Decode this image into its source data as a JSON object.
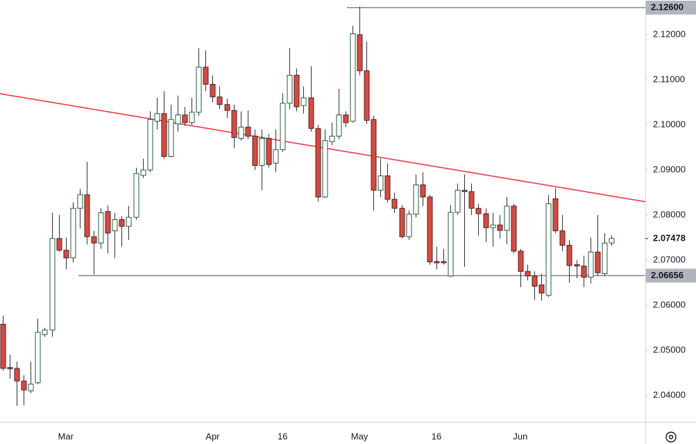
{
  "chart_data": {
    "type": "candlestick",
    "categories": [
      null,
      null,
      null,
      null,
      null,
      null,
      null,
      null,
      null,
      "Mar",
      null,
      null,
      null,
      null,
      null,
      null,
      null,
      null,
      null,
      null,
      null,
      null,
      null,
      null,
      null,
      null,
      null,
      null,
      null,
      null,
      "Apr",
      null,
      null,
      null,
      null,
      null,
      null,
      null,
      null,
      null,
      "16",
      null,
      null,
      null,
      null,
      null,
      null,
      null,
      null,
      null,
      null,
      "May",
      null,
      null,
      null,
      null,
      null,
      null,
      null,
      null,
      null,
      null,
      "16",
      null,
      null,
      null,
      null,
      null,
      null,
      null,
      null,
      null,
      null,
      null,
      "Jun",
      null,
      null,
      null,
      null,
      null,
      null,
      null,
      null,
      null,
      null,
      null,
      null,
      null
    ],
    "open": [
      2.0558,
      2.0462,
      2.046,
      2.0432,
      2.041,
      2.0428,
      2.0535,
      2.0545,
      2.0748,
      2.0722,
      2.0705,
      2.0815,
      2.0845,
      2.0752,
      2.0738,
      2.0808,
      2.0765,
      2.079,
      2.0775,
      2.0795,
      2.0888,
      2.09,
      2.1008,
      2.1025,
      2.093,
      2.1002,
      2.1022,
      2.1005,
      2.1028,
      2.1128,
      2.109,
      2.1062,
      2.1045,
      2.1032,
      2.097,
      2.0995,
      2.0975,
      2.091,
      2.097,
      2.0915,
      2.0945,
      2.1048,
      2.111,
      2.1043,
      2.106,
      2.0992,
      2.084,
      2.0963,
      2.0975,
      2.1022,
      2.1008,
      2.12,
      2.112,
      2.1012,
      2.0855,
      2.0887,
      2.0835,
      2.0815,
      2.0752,
      2.0802,
      2.0867,
      2.084,
      2.0697,
      2.0697,
      2.0665,
      2.0806,
      2.0855,
      2.0852,
      2.0815,
      2.0803,
      2.0772,
      2.0778,
      2.0766,
      2.082,
      2.072,
      2.0675,
      2.0665,
      2.0645,
      2.0622,
      2.0836,
      2.0765,
      2.0733,
      2.069,
      2.0687,
      2.0662,
      2.0718,
      2.067,
      2.0738
    ],
    "high": [
      2.0577,
      2.049,
      2.0475,
      2.0445,
      2.0475,
      2.057,
      2.055,
      2.0805,
      2.08,
      2.075,
      2.0828,
      2.0858,
      2.0918,
      2.0765,
      2.0815,
      2.0822,
      2.0805,
      2.0798,
      2.082,
      2.0905,
      2.0925,
      2.103,
      2.106,
      2.1075,
      2.1045,
      2.1065,
      2.104,
      2.106,
      2.117,
      2.1165,
      2.111,
      2.1085,
      2.1058,
      2.1045,
      2.103,
      2.1032,
      2.099,
      2.099,
      2.098,
      2.099,
      2.107,
      2.117,
      2.1125,
      2.1085,
      2.113,
      2.1,
      2.099,
      2.1005,
      2.108,
      2.103,
      2.122,
      2.1262,
      2.1185,
      2.102,
      2.0925,
      2.0915,
      2.085,
      2.0822,
      2.081,
      2.089,
      2.0895,
      2.0845,
      2.073,
      2.0725,
      2.0822,
      2.087,
      2.089,
      2.087,
      2.0825,
      2.0815,
      2.0805,
      2.08,
      2.084,
      2.0825,
      2.0725,
      2.069,
      2.0675,
      2.067,
      2.0845,
      2.086,
      2.08,
      2.0745,
      2.07,
      2.071,
      2.075,
      2.08,
      2.076,
      2.0755
    ],
    "low": [
      2.0455,
      2.0437,
      2.0377,
      2.0378,
      2.0405,
      2.0425,
      2.053,
      2.053,
      2.0718,
      2.068,
      2.0695,
      2.077,
      2.0735,
      2.0668,
      2.0725,
      2.0715,
      2.0705,
      2.073,
      2.0745,
      2.079,
      2.0882,
      2.0895,
      2.099,
      2.0925,
      2.0928,
      2.0985,
      2.0998,
      2.1,
      2.102,
      2.1075,
      2.105,
      2.1035,
      2.1015,
      2.0948,
      2.0965,
      2.0968,
      2.09,
      2.0855,
      2.0905,
      2.0895,
      2.094,
      2.1035,
      2.103,
      2.1025,
      2.0985,
      2.083,
      2.0838,
      2.0955,
      2.0968,
      2.0995,
      2.1005,
      2.111,
      2.1002,
      2.081,
      2.084,
      2.0828,
      2.0805,
      2.0748,
      2.0745,
      2.0795,
      2.082,
      2.069,
      2.068,
      2.069,
      2.0662,
      2.08,
      2.0685,
      2.08,
      2.0755,
      2.074,
      2.073,
      2.0748,
      2.0735,
      2.0715,
      2.064,
      2.0655,
      2.0612,
      2.061,
      2.0618,
      2.076,
      2.072,
      2.065,
      2.066,
      2.064,
      2.0648,
      2.0665,
      2.0665,
      2.0732
    ],
    "close": [
      2.046,
      2.0459,
      2.0432,
      2.0412,
      2.0425,
      2.054,
      2.0545,
      2.0748,
      2.0722,
      2.0705,
      2.0815,
      2.0845,
      2.0752,
      2.0738,
      2.0805,
      2.076,
      2.079,
      2.0775,
      2.0795,
      2.0892,
      2.09,
      2.1012,
      2.1025,
      2.093,
      2.1012,
      2.1022,
      2.1005,
      2.1028,
      2.1128,
      2.109,
      2.1062,
      2.1045,
      2.1032,
      2.0972,
      2.0995,
      2.0975,
      2.091,
      2.097,
      2.0912,
      2.0945,
      2.1048,
      2.111,
      2.104,
      2.106,
      2.0992,
      2.084,
      2.0965,
      2.0975,
      2.1022,
      2.1005,
      2.1202,
      2.112,
      2.101,
      2.0855,
      2.0887,
      2.0835,
      2.0815,
      2.0752,
      2.0802,
      2.0867,
      2.084,
      2.0696,
      2.0694,
      2.0694,
      2.0806,
      2.0855,
      2.0852,
      2.0815,
      2.0803,
      2.0772,
      2.0778,
      2.0766,
      2.082,
      2.072,
      2.0675,
      2.0665,
      2.0642,
      2.0627,
      2.0825,
      2.0765,
      2.0733,
      2.0688,
      2.0687,
      2.0662,
      2.0718,
      2.0672,
      2.0738,
      2.0748
    ],
    "up_color": "#ffffff",
    "down_color": "#e0463c",
    "ylim": [
      2.03415,
      2.12769
    ],
    "yticks": [
      {
        "value": 2.04,
        "label": "2.04000"
      },
      {
        "value": 2.05,
        "label": "2.05000"
      },
      {
        "value": 2.06,
        "label": "2.06000"
      },
      {
        "value": 2.07,
        "label": "2.07000"
      },
      {
        "value": 2.08,
        "label": "2.08000"
      },
      {
        "value": 2.09,
        "label": "2.09000"
      },
      {
        "value": 2.1,
        "label": "2.10000"
      },
      {
        "value": 2.11,
        "label": "2.11000"
      },
      {
        "value": 2.12,
        "label": "2.12000"
      }
    ],
    "levels": [
      {
        "value": 2.126,
        "label": "2.12600"
      },
      {
        "value": 2.06656,
        "label": "2.06656"
      }
    ],
    "last_price": {
      "value": 2.07478,
      "label": "2.07478"
    },
    "trendline": {
      "color": "#f23645",
      "x": [
        22,
        79
      ],
      "y": [
        2.1011,
        2.0863
      ]
    }
  }
}
